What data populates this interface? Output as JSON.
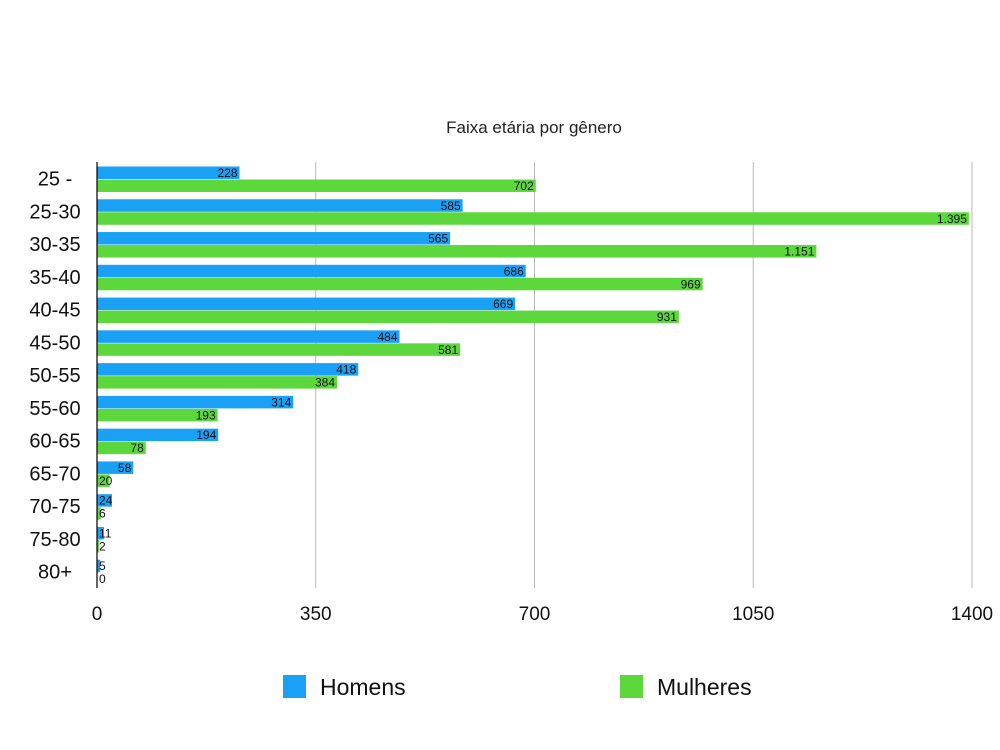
{
  "chart_data": {
    "type": "bar",
    "orientation": "horizontal",
    "title": "Faixa etária por gênero",
    "categories": [
      "25 -",
      "25-30",
      "30-35",
      "35-40",
      "40-45",
      "45-50",
      "50-55",
      "55-60",
      "60-65",
      "65-70",
      "70-75",
      "75-80",
      "80+"
    ],
    "series": [
      {
        "name": "Homens",
        "color": "#1aa0f5",
        "values": [
          228,
          585,
          565,
          686,
          669,
          484,
          418,
          314,
          194,
          58,
          24,
          11,
          5
        ],
        "labels": [
          "228",
          "585",
          "565",
          "686",
          "669",
          "484",
          "418",
          "314",
          "194",
          "58",
          "24",
          "11",
          "5"
        ]
      },
      {
        "name": "Mulheres",
        "color": "#5cd83c",
        "values": [
          702,
          1395,
          1151,
          969,
          931,
          581,
          384,
          193,
          78,
          20,
          6,
          2,
          0
        ],
        "labels": [
          "702",
          "1.395",
          "1.151",
          "969",
          "931",
          "581",
          "384",
          "193",
          "78",
          "20",
          "6",
          "2",
          "0"
        ]
      }
    ],
    "xlim": [
      0,
      1400
    ],
    "xticks": [
      0,
      350,
      700,
      1050,
      1400
    ],
    "xtick_labels": [
      "0",
      "350",
      "700",
      "1050",
      "1400"
    ],
    "grid": true,
    "legend_position": "bottom"
  }
}
